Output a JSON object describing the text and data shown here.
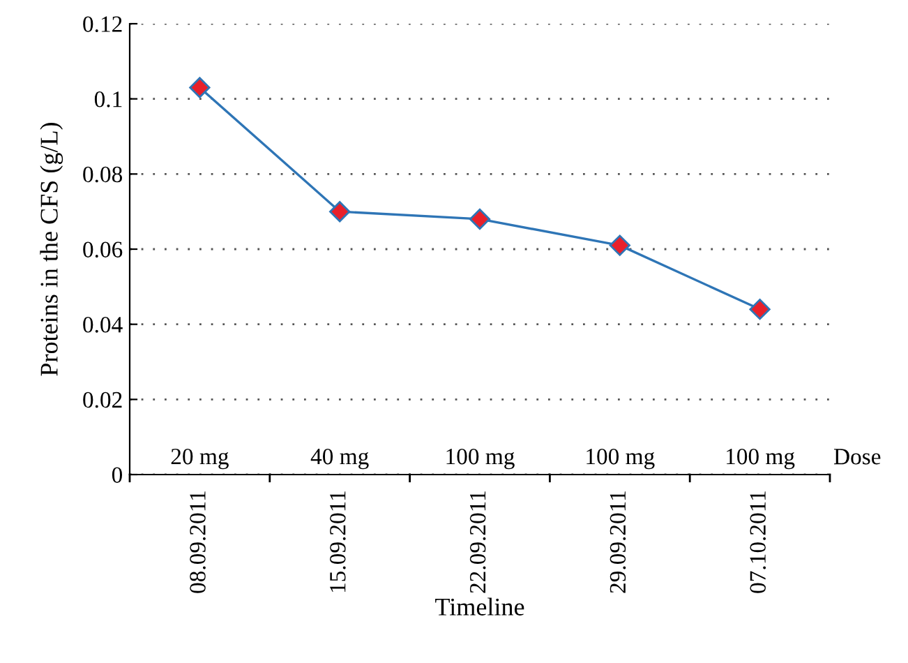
{
  "chart_data": {
    "type": "line",
    "xlabel": "Timeline",
    "ylabel": "Proteins in the CFS (g/L)",
    "categories": [
      "08.09.2011",
      "15.09.2011",
      "22.09.2011",
      "29.09.2011",
      "07.10.2011"
    ],
    "series": [
      {
        "color": "#2e75b6",
        "values": [
          0.103,
          0.07,
          0.068,
          0.061,
          0.044
        ]
      }
    ],
    "marker": "diamond",
    "line_style": "solid",
    "ylim": [
      0,
      0.12
    ],
    "yticks": [
      0,
      0.02,
      0.04,
      0.06,
      0.08,
      0.1,
      0.12
    ],
    "grid": "y",
    "legend": false,
    "annotations": [
      "20 mg",
      "40 mg",
      "100 mg",
      "100 mg",
      "100 mg",
      "Dose"
    ]
  }
}
